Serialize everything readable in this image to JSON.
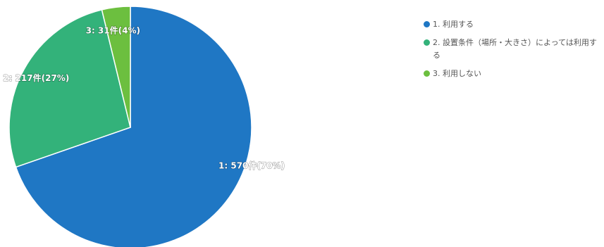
{
  "chart_data": {
    "type": "pie",
    "slices": [
      {
        "label": "1. 利用する",
        "value": 570,
        "data_label": "1: 570件(70%)",
        "color": "#1f77c4"
      },
      {
        "label": "2. 設置条件（場所・大きさ）によっては利用する",
        "value": 217,
        "data_label": "2: 217件(27%)",
        "color": "#33b27a"
      },
      {
        "label": "3. 利用しない",
        "value": 31,
        "data_label": "3: 31件(4%)",
        "color": "#6cbf3f"
      }
    ],
    "legend_position": "top-right"
  }
}
